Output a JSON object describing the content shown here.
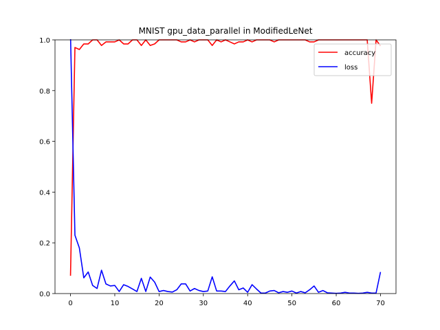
{
  "chart_data": {
    "type": "line",
    "title": "MNIST gpu_data_parallel in ModifiedLeNet",
    "xlabel": "",
    "ylabel": "",
    "xlim": [
      -3.5,
      73.5
    ],
    "ylim": [
      0.0,
      1.0
    ],
    "x_ticks": [
      "0",
      "10",
      "20",
      "30",
      "40",
      "50",
      "60",
      "70"
    ],
    "y_ticks": [
      "0.0",
      "0.2",
      "0.4",
      "0.6",
      "0.8",
      "1.0"
    ],
    "grid": false,
    "legend_position": "top-right",
    "x": [
      0,
      1,
      2,
      3,
      4,
      5,
      6,
      7,
      8,
      9,
      10,
      11,
      12,
      13,
      14,
      15,
      16,
      17,
      18,
      19,
      20,
      21,
      22,
      23,
      24,
      25,
      26,
      27,
      28,
      29,
      30,
      31,
      32,
      33,
      34,
      35,
      36,
      37,
      38,
      39,
      40,
      41,
      42,
      43,
      44,
      45,
      46,
      47,
      48,
      49,
      50,
      51,
      52,
      53,
      54,
      55,
      56,
      57,
      58,
      59,
      60,
      61,
      62,
      63,
      64,
      65,
      66,
      67,
      68,
      69,
      70
    ],
    "series": [
      {
        "name": "accuracy",
        "color": "#ff0000",
        "values": [
          0.07,
          0.97,
          0.962,
          0.984,
          0.984,
          1.0,
          1.0,
          0.978,
          0.992,
          0.992,
          0.992,
          1.0,
          0.984,
          0.984,
          1.0,
          1.0,
          0.978,
          1.0,
          0.978,
          0.984,
          1.0,
          1.0,
          1.0,
          1.0,
          1.0,
          0.992,
          0.992,
          1.0,
          0.992,
          1.0,
          1.0,
          1.0,
          0.978,
          1.0,
          0.992,
          1.0,
          0.992,
          0.984,
          0.992,
          0.992,
          1.0,
          0.992,
          1.0,
          1.0,
          1.0,
          1.0,
          0.992,
          1.0,
          1.0,
          1.0,
          1.0,
          1.0,
          1.0,
          1.0,
          0.992,
          0.992,
          1.0,
          1.0,
          1.0,
          1.0,
          1.0,
          1.0,
          1.0,
          1.0,
          1.0,
          1.0,
          1.0,
          1.0,
          0.75,
          1.0,
          0.976
        ]
      },
      {
        "name": "loss",
        "color": "#0000ff",
        "values": [
          1.02,
          0.23,
          0.18,
          0.062,
          0.085,
          0.032,
          0.02,
          0.092,
          0.038,
          0.03,
          0.032,
          0.008,
          0.035,
          0.028,
          0.018,
          0.008,
          0.06,
          0.008,
          0.065,
          0.045,
          0.008,
          0.012,
          0.008,
          0.006,
          0.015,
          0.038,
          0.038,
          0.01,
          0.02,
          0.012,
          0.008,
          0.01,
          0.066,
          0.01,
          0.01,
          0.008,
          0.03,
          0.05,
          0.015,
          0.022,
          0.005,
          0.035,
          0.018,
          0.002,
          0.002,
          0.01,
          0.012,
          0.003,
          0.008,
          0.005,
          0.01,
          0.002,
          0.008,
          0.003,
          0.015,
          0.03,
          0.005,
          0.012,
          0.003,
          0.002,
          0.001,
          0.002,
          0.005,
          0.002,
          0.002,
          0.001,
          0.002,
          0.005,
          0.002,
          0.002,
          0.085
        ]
      }
    ]
  }
}
